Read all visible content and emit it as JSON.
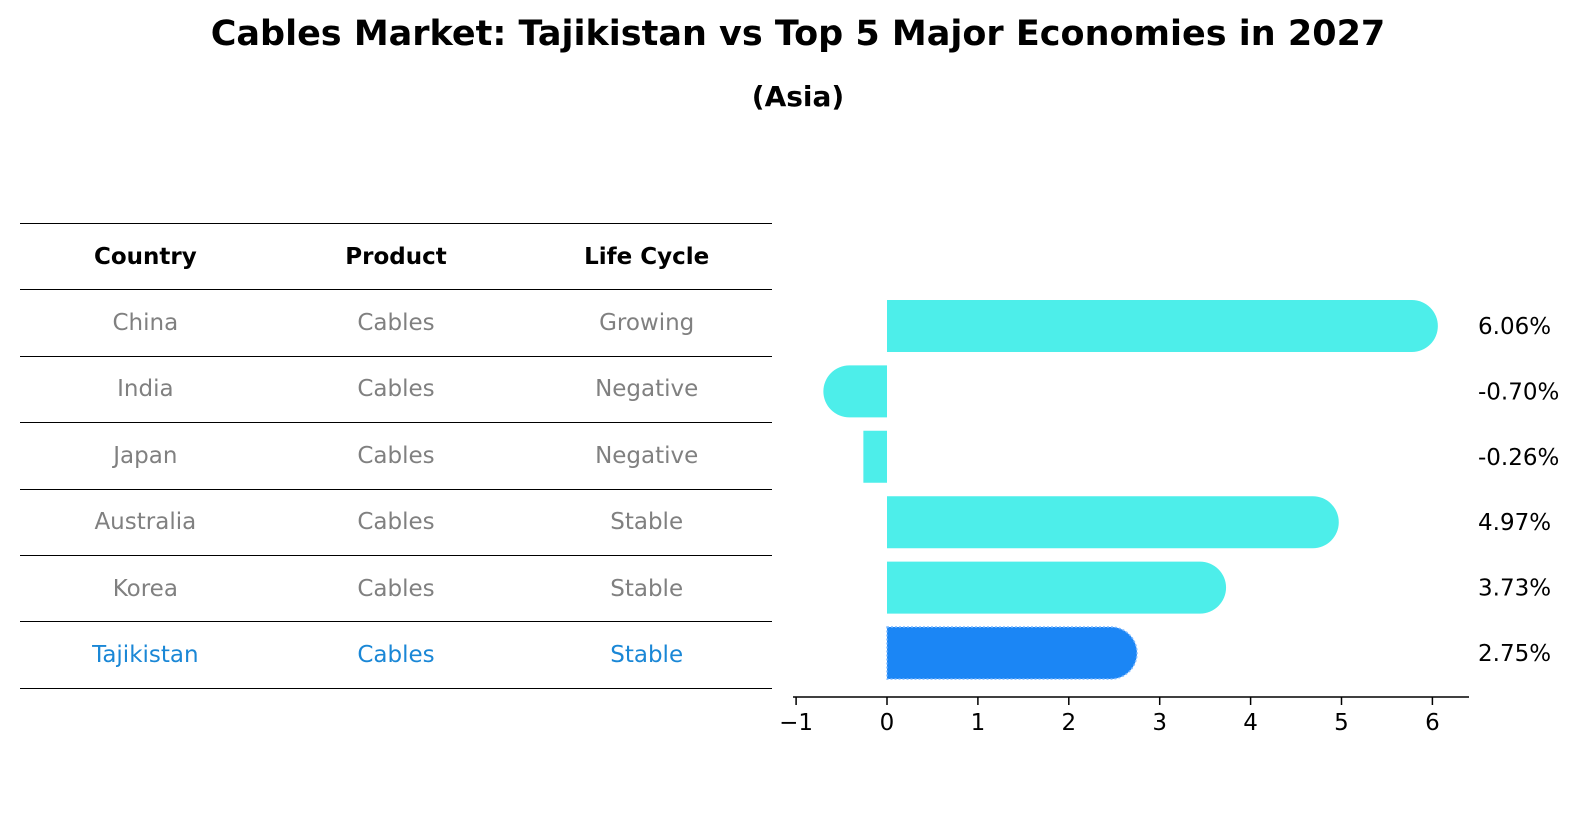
{
  "title": "Cables Market: Tajikistan vs Top 5 Major Economies in 2027",
  "subtitle": "(Asia)",
  "table": {
    "headers": [
      "Country",
      "Product",
      "Life Cycle"
    ],
    "rows": [
      {
        "country": "China",
        "product": "Cables",
        "life_cycle": "Growing"
      },
      {
        "country": "India",
        "product": "Cables",
        "life_cycle": "Negative"
      },
      {
        "country": "Japan",
        "product": "Cables",
        "life_cycle": "Negative"
      },
      {
        "country": "Australia",
        "product": "Cables",
        "life_cycle": "Stable"
      },
      {
        "country": "Korea",
        "product": "Cables",
        "life_cycle": "Stable"
      },
      {
        "country": "Tajikistan",
        "product": "Cables",
        "life_cycle": "Stable"
      }
    ],
    "highlight_row": "Tajikistan"
  },
  "chart_data": {
    "type": "bar",
    "orientation": "horizontal",
    "categories": [
      "China",
      "India",
      "Japan",
      "Australia",
      "Korea",
      "Tajikistan"
    ],
    "values": [
      6.06,
      -0.7,
      -0.26,
      4.97,
      3.73,
      2.75
    ],
    "value_labels": [
      "6.06%",
      "-0.70%",
      "-0.26%",
      "4.97%",
      "3.73%",
      "2.75%"
    ],
    "xlim": [
      -1.05,
      6.4
    ],
    "xticks": [
      -1,
      0,
      1,
      2,
      3,
      4,
      5,
      6
    ],
    "xtick_labels": [
      "−1",
      "0",
      "1",
      "2",
      "3",
      "4",
      "5",
      "6"
    ],
    "highlight": "Tajikistan",
    "colors": {
      "default": "#4deeea",
      "highlight": "#1b86f5"
    },
    "grid": false
  }
}
